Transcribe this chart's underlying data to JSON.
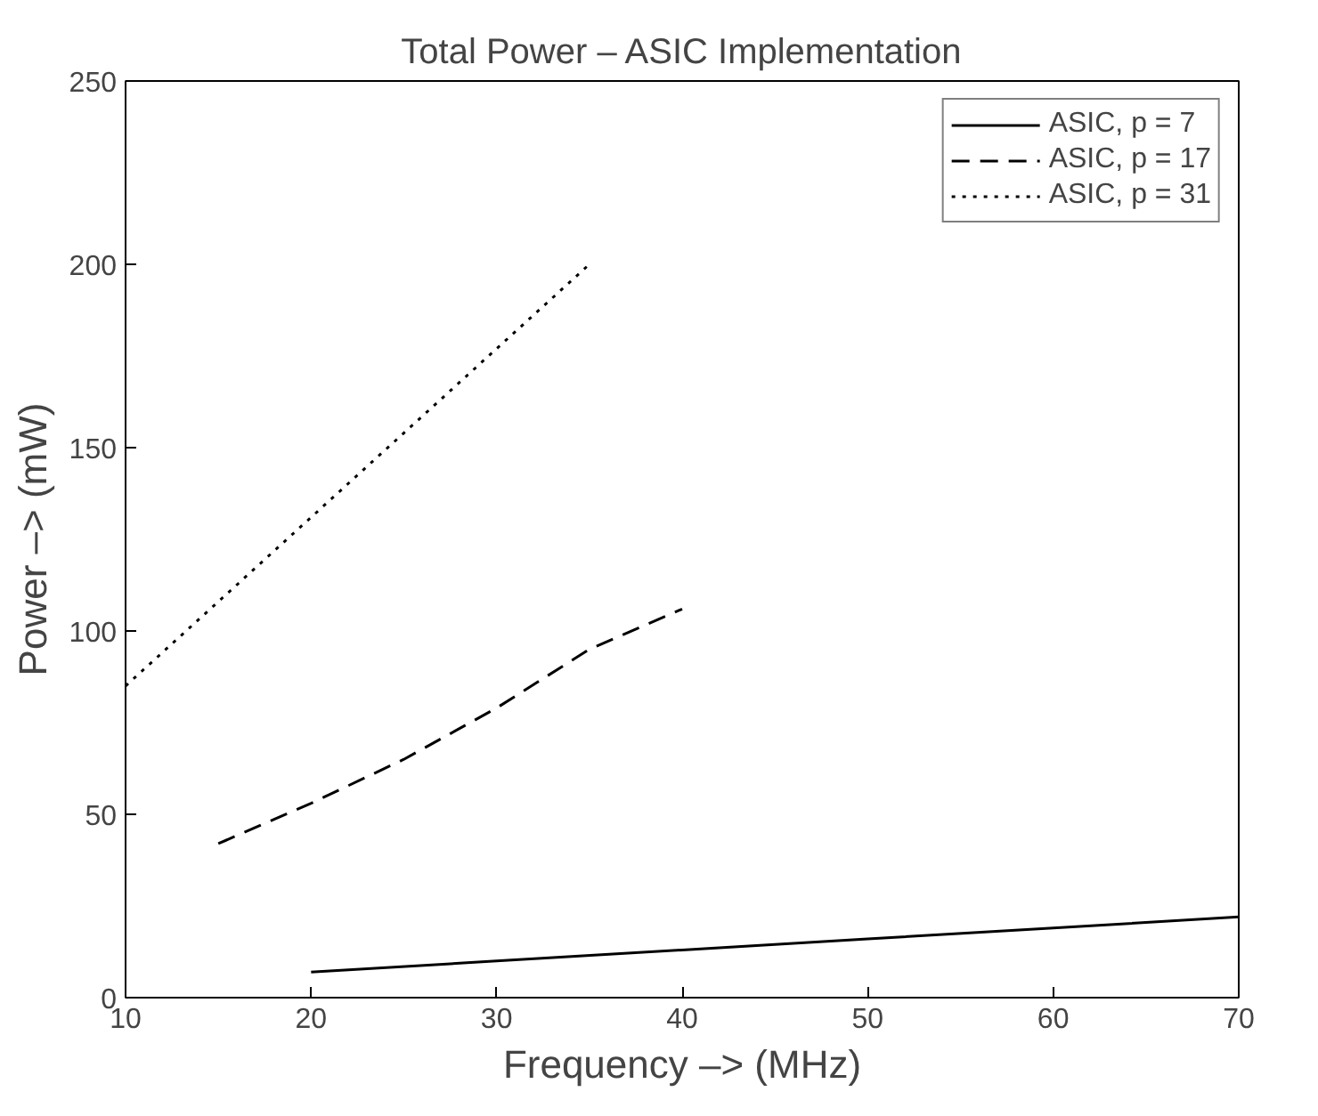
{
  "chart_data": {
    "type": "line",
    "title": "Total Power – ASIC Implementation",
    "xlabel": "Frequency –> (MHz)",
    "ylabel": "Power –> (mW)",
    "xlim": [
      10,
      70
    ],
    "ylim": [
      0,
      250
    ],
    "xticks": [
      10,
      20,
      30,
      40,
      50,
      60,
      70
    ],
    "yticks": [
      0,
      50,
      100,
      150,
      200,
      250
    ],
    "grid": false,
    "legend": "top right",
    "marker": "none",
    "series": [
      {
        "name": "ASIC, p = 7",
        "color": "#000000",
        "line_style": "solid",
        "x": [
          20,
          30,
          40,
          50,
          60,
          70
        ],
        "values": [
          7,
          10,
          13,
          16,
          19,
          22
        ]
      },
      {
        "name": "ASIC, p = 17",
        "color": "#000000",
        "line_style": "dashed",
        "x": [
          15,
          20,
          25,
          30,
          35,
          40
        ],
        "values": [
          42,
          53,
          65,
          79,
          95,
          106
        ]
      },
      {
        "name": "ASIC, p = 31",
        "color": "#000000",
        "line_style": "dotted",
        "x": [
          10,
          15,
          20,
          25,
          30,
          35
        ],
        "values": [
          85,
          108,
          131,
          154,
          177,
          200
        ]
      }
    ]
  }
}
